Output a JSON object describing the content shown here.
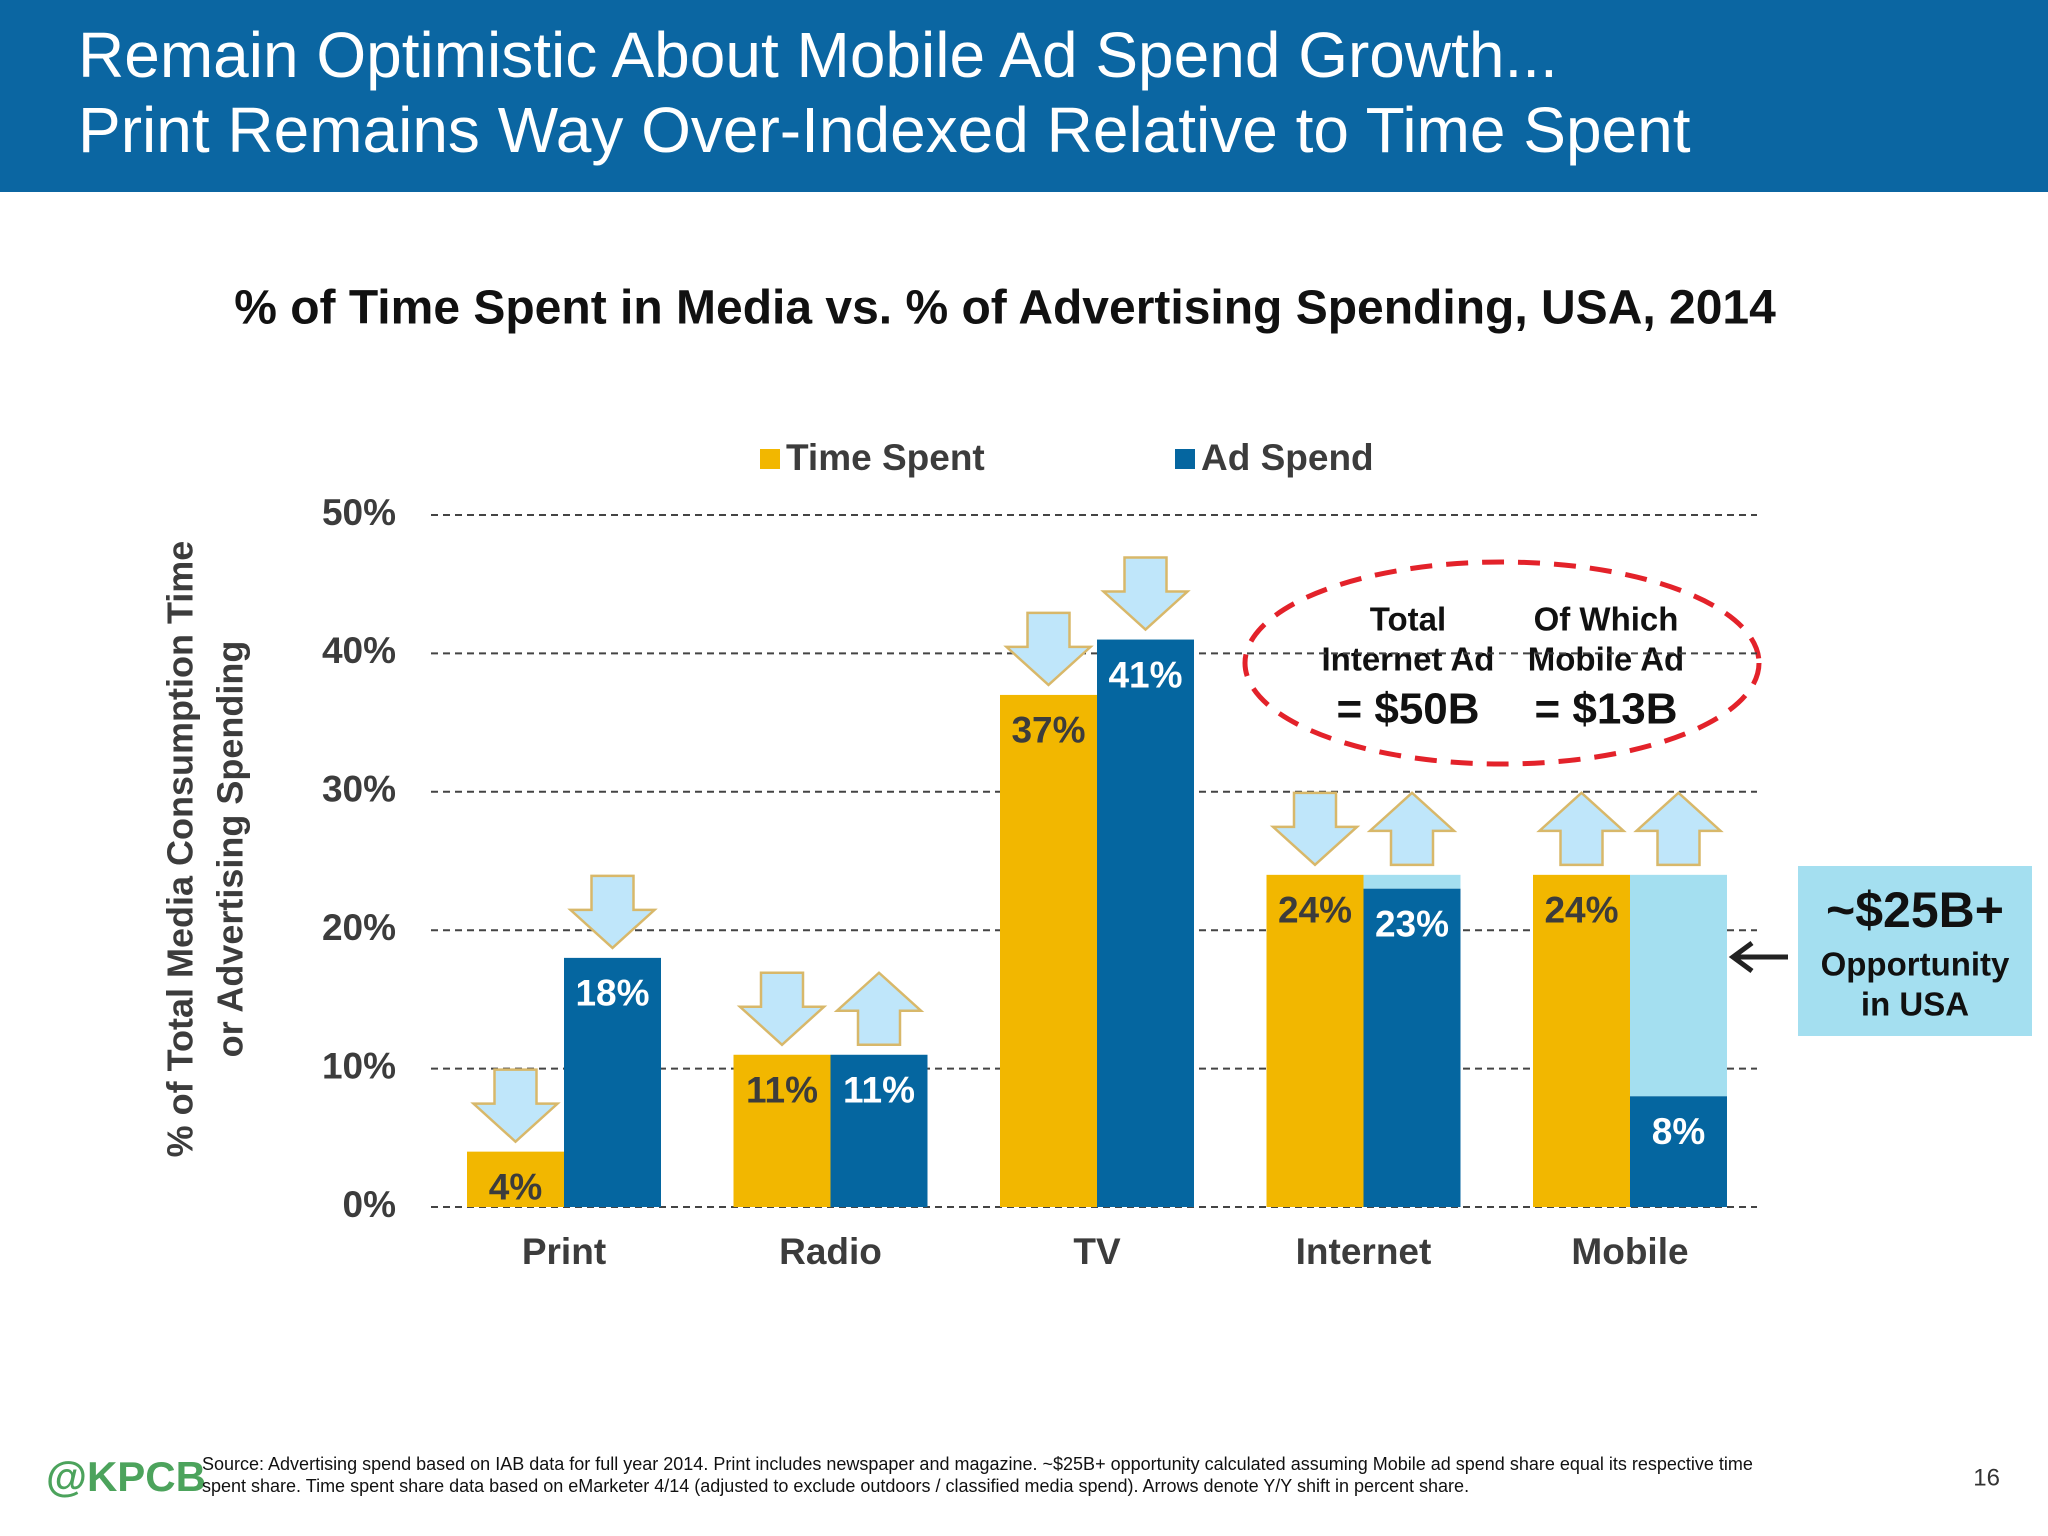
{
  "header": {
    "title_lines": [
      "Remain Optimistic About Mobile Ad Spend Growth...",
      "Print Remains Way Over-Indexed Relative to Time Spent"
    ]
  },
  "chart_data": {
    "type": "bar",
    "title": "% of Time Spent in Media vs. % of Advertising Spending, USA, 2014",
    "y_label_lines": [
      "% of Total Media Consumption Time",
      "or Advertising Spending"
    ],
    "categories": [
      "Print",
      "Radio",
      "TV",
      "Internet",
      "Mobile"
    ],
    "series": [
      {
        "name": "Time Spent",
        "color": "#f2b700",
        "values": [
          4,
          11,
          37,
          24,
          24
        ],
        "value_labels": [
          "4%",
          "11%",
          "37%",
          "24%",
          "24%"
        ],
        "arrows": [
          "down",
          "down",
          "down",
          "down",
          "up"
        ]
      },
      {
        "name": "Ad Spend",
        "color": "#0566a0",
        "values": [
          18,
          11,
          41,
          23,
          8
        ],
        "value_labels": [
          "18%",
          "11%",
          "41%",
          "23%",
          "8%"
        ],
        "arrows": [
          "down",
          "up",
          "down",
          "up",
          "up"
        ],
        "gap_color": "#a4dff0",
        "show_gap": [
          false,
          false,
          false,
          true,
          true
        ]
      }
    ],
    "ylim": [
      0,
      50
    ],
    "yticks": [
      {
        "value": 0,
        "label": "0%"
      },
      {
        "value": 10,
        "label": "10%"
      },
      {
        "value": 20,
        "label": "20%"
      },
      {
        "value": 30,
        "label": "30%"
      },
      {
        "value": 40,
        "label": "40%"
      },
      {
        "value": 50,
        "label": "50%"
      }
    ],
    "grid": true,
    "annotations": {
      "internet": {
        "lines": [
          "Total",
          "Internet Ad"
        ],
        "amount": "= $50B"
      },
      "mobile": {
        "lines": [
          "Of Which",
          "Mobile Ad"
        ],
        "amount": "= $13B"
      },
      "opportunity": {
        "amount": "~$25B+",
        "lines": [
          "Opportunity",
          "in USA"
        ]
      }
    }
  },
  "footer": {
    "brand": "@KPCB",
    "source_lines": [
      "Source: Advertising spend based on IAB data for full year 2014. Print includes newspaper and magazine. ~$25B+ opportunity calculated assuming Mobile ad spend share equal its respective time",
      "spent share. Time spent share data based on eMarketer 4/14 (adjusted to exclude outdoors / classified media spend). Arrows denote Y/Y shift in percent share."
    ],
    "page": "16"
  }
}
